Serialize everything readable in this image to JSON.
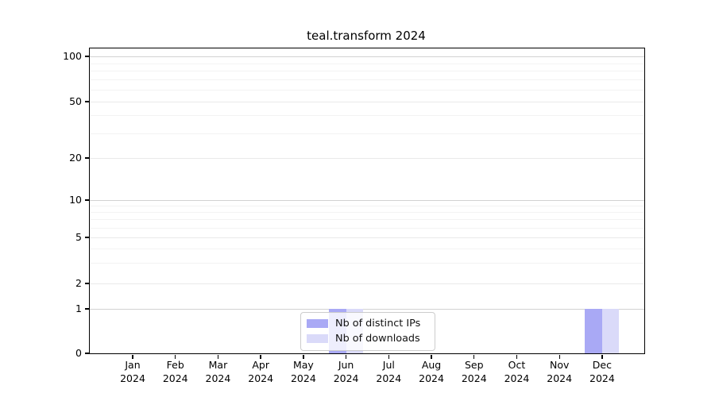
{
  "chart_data": {
    "type": "bar",
    "title": "teal.transform 2024",
    "year_label": "2024",
    "categories": [
      "Jan",
      "Feb",
      "Mar",
      "Apr",
      "May",
      "Jun",
      "Jul",
      "Aug",
      "Sep",
      "Oct",
      "Nov",
      "Dec"
    ],
    "series": [
      {
        "name": "Nb of distinct IPs",
        "color": "#a9a9f5",
        "values": [
          0,
          0,
          0,
          0,
          0,
          1,
          0,
          0,
          0,
          0,
          0,
          1
        ]
      },
      {
        "name": "Nb of downloads",
        "color": "#dadaf9",
        "values": [
          0,
          0,
          0,
          0,
          0,
          1,
          0,
          0,
          0,
          0,
          0,
          1
        ]
      }
    ],
    "xlabel": "",
    "ylabel": "",
    "ylim": [
      0,
      110
    ],
    "y_axis": {
      "scale": "symlog",
      "labeled_ticks": [
        0,
        1,
        2,
        5,
        10,
        20,
        50,
        100
      ],
      "minor_ticks": [
        3,
        4,
        6,
        7,
        8,
        9,
        30,
        40,
        60,
        70,
        80,
        90
      ]
    },
    "grid": "horizontal",
    "legend": {
      "position": "bottom-center",
      "entries": [
        "Nb of distinct IPs",
        "Nb of downloads"
      ]
    }
  },
  "colors": {
    "background": "#ffffff",
    "spine": "#000000",
    "grid_major": "#d2d2d2",
    "grid_mid": "#e9e9e9",
    "grid_minor": "#f3f3f3",
    "bar_distinct_ips": "#a9a9f5",
    "bar_downloads": "#dadaf9",
    "text": "#000000"
  }
}
